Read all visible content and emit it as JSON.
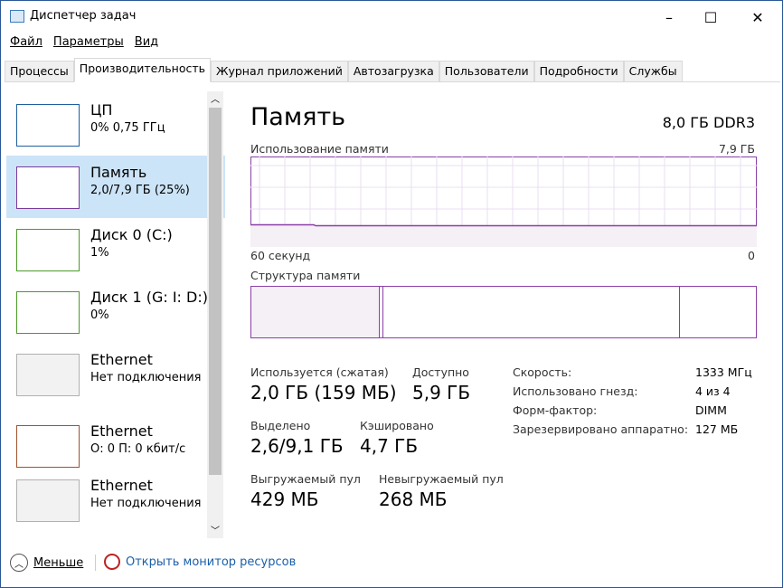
{
  "window": {
    "title": "Диспетчер задач",
    "minimize": "–",
    "maximize": "☐",
    "close": "✕"
  },
  "menu": [
    "Файл",
    "Параметры",
    "Вид"
  ],
  "tabs": [
    "Процессы",
    "Производительность",
    "Журнал приложений",
    "Автозагрузка",
    "Пользователи",
    "Подробности",
    "Службы"
  ],
  "active_tab": 1,
  "sidebar": [
    {
      "name": "ЦП",
      "sub": "0% 0,75 ГГц",
      "color": "#1f5f9f"
    },
    {
      "name": "Память",
      "sub": "2,0/7,9 ГБ (25%)",
      "color": "#7a3a9a"
    },
    {
      "name": "Диск 0 (C:)",
      "sub": "1%",
      "color": "#4c9a2a"
    },
    {
      "name": "Диск 1 (G: I: D:)",
      "sub": "0%",
      "color": "#4c9a2a"
    },
    {
      "name": "Ethernet",
      "sub": "Нет подключения",
      "color": "#b0b0b0"
    },
    {
      "name": "Ethernet",
      "sub": "О: 0 П: 0 кбит/с",
      "color": "#a0522d"
    },
    {
      "name": "Ethernet",
      "sub": "Нет подключения",
      "color": "#b0b0b0"
    }
  ],
  "main": {
    "title": "Память",
    "capacity": "8,0 ГБ DDR3",
    "usage_label": "Использование памяти",
    "usage_max": "7,9 ГБ",
    "time_label": "60 секунд",
    "time_min": "0",
    "usage_percent": 25,
    "structure_label": "Структура памяти",
    "stats": [
      {
        "label": "Используется (сжатая)",
        "value": "2,0 ГБ (159 МБ)"
      },
      {
        "label": "Доступно",
        "value": "5,9 ГБ"
      },
      {
        "label": "Выделено",
        "value": "2,6/9,1 ГБ"
      },
      {
        "label": "Кэшировано",
        "value": "4,7 ГБ"
      },
      {
        "label": "Выгружаемый пул",
        "value": "429 МБ"
      },
      {
        "label": "Невыгружаемый пул",
        "value": "268 МБ"
      }
    ],
    "details": [
      {
        "k": "Скорость:",
        "v": "1333 МГц"
      },
      {
        "k": "Использовано гнезд:",
        "v": "4 из 4"
      },
      {
        "k": "Форм-фактор:",
        "v": "DIMM"
      },
      {
        "k": "Зарезервировано аппаратно:",
        "v": "127 МБ"
      }
    ]
  },
  "footer": {
    "less": "Меньше",
    "monitor": "Открыть монитор ресурсов"
  },
  "colors": {
    "memory": "#8b3fa8",
    "selected": "#cce4f7",
    "link": "#1a5fa8"
  }
}
